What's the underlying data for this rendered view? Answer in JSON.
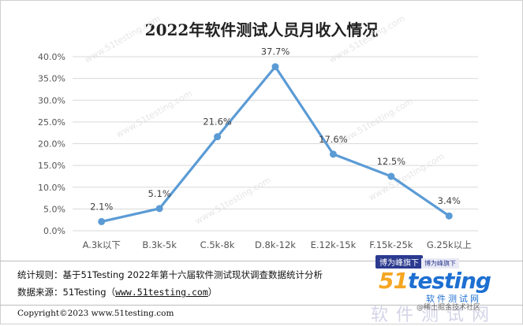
{
  "chart_data": {
    "type": "line",
    "title": "2022年软件测试人员月收入情况",
    "categories": [
      "A.3k以下",
      "B.3k-5k",
      "C.5k-8k",
      "D.8k-12k",
      "E.12k-15k",
      "F.15k-25k",
      "G.25k以上"
    ],
    "values": [
      2.1,
      5.1,
      21.6,
      37.7,
      17.6,
      12.5,
      3.4
    ],
    "value_labels": [
      "2.1%",
      "5.1%",
      "21.6%",
      "37.7%",
      "17.6%",
      "12.5%",
      "3.4%"
    ],
    "ylim": [
      0,
      40
    ],
    "yticks": [
      "0.0%",
      "5.0%",
      "10.0%",
      "15.0%",
      "20.0%",
      "25.0%",
      "30.0%",
      "35.0%",
      "40.0%"
    ],
    "grid": true,
    "legend": "none",
    "color": "#5b9bd5"
  },
  "footer": {
    "rule_label": "统计规则：",
    "rule_text": "基于51Testing 2022年第十六届软件测试现状调查数据统计分析",
    "source_label": "数据来源：",
    "source_text": "51Testing（",
    "source_url": "www.51testing.com",
    "source_close": "）",
    "copyright": "Copyright©2023 www.51testing.com"
  },
  "logo": {
    "badge": "博为峰旗下",
    "badge_small": "博为峰旗下",
    "brand_num": "51",
    "brand_word": "testing",
    "subtitle": "软件测试网",
    "watermark_big": "软件测试网",
    "watermark_small": "@稀土掘金技术社区"
  },
  "watermark_text": "www.51testing.com"
}
